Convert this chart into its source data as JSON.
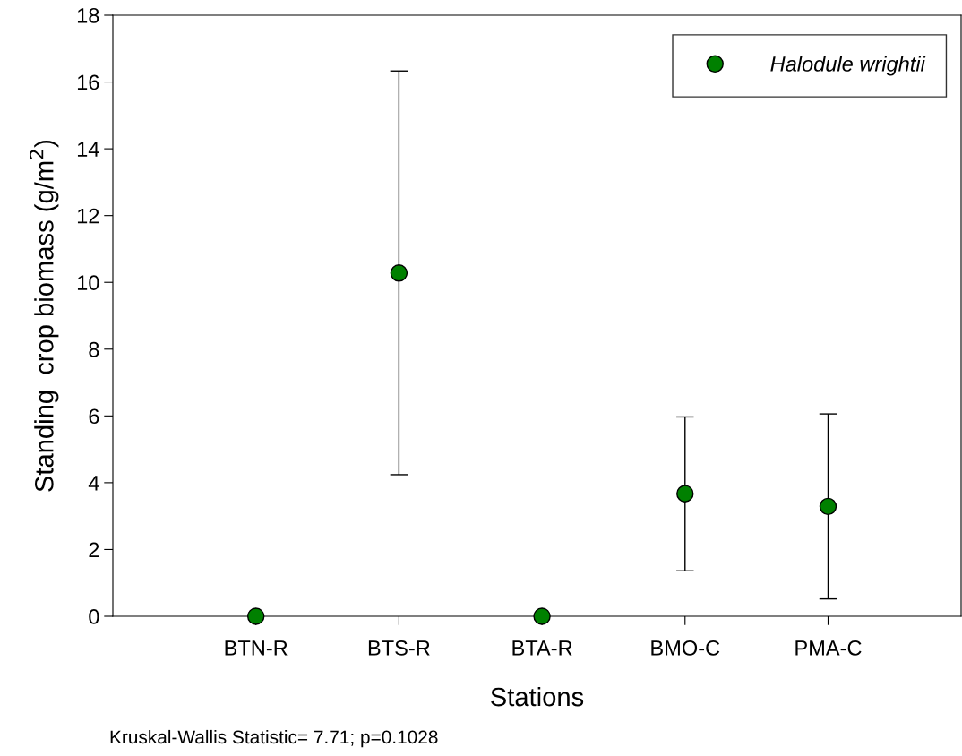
{
  "chart_data": {
    "type": "scatter",
    "xlabel": "Stations",
    "ylabel": "Standing  crop biomass (g/m$^{2}$)",
    "categories": [
      "BTN-R",
      "BTS-R",
      "BTA-R",
      "BMO-C",
      "PMA-C"
    ],
    "series": [
      {
        "name": "Halodule wrightii",
        "color": "#008000",
        "values": [
          0,
          10.28,
          0,
          3.67,
          3.29
        ],
        "errors": [
          null,
          [
            4.24,
            16.33
          ],
          null,
          [
            1.36,
            5.97
          ],
          [
            0.52,
            6.06
          ]
        ]
      }
    ],
    "ylim": [
      0,
      18
    ],
    "yticks": [
      0,
      2,
      4,
      6,
      8,
      10,
      12,
      14,
      16,
      18
    ],
    "marker": "circle",
    "legend": "top right",
    "grid": false,
    "annotations": [
      "Kruskal-Wallis Statistic= 7.71; p=0.1028"
    ]
  }
}
